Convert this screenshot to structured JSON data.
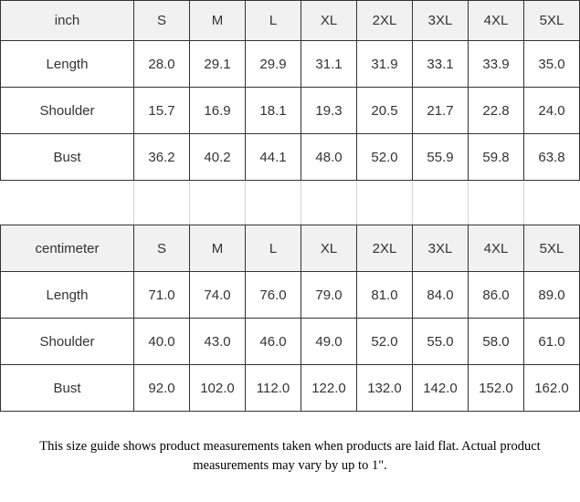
{
  "chart_data": [
    {
      "type": "table",
      "title": "inch",
      "columns": [
        "S",
        "M",
        "L",
        "XL",
        "2XL",
        "3XL",
        "4XL",
        "5XL"
      ],
      "rows": [
        {
          "label": "Length",
          "values": [
            "28.0",
            "29.1",
            "29.9",
            "31.1",
            "31.9",
            "33.1",
            "33.9",
            "35.0"
          ]
        },
        {
          "label": "Shoulder",
          "values": [
            "15.7",
            "16.9",
            "18.1",
            "19.3",
            "20.5",
            "21.7",
            "22.8",
            "24.0"
          ]
        },
        {
          "label": "Bust",
          "values": [
            "36.2",
            "40.2",
            "44.1",
            "48.0",
            "52.0",
            "55.9",
            "59.8",
            "63.8"
          ]
        }
      ]
    },
    {
      "type": "table",
      "title": "centimeter",
      "columns": [
        "S",
        "M",
        "L",
        "XL",
        "2XL",
        "3XL",
        "4XL",
        "5XL"
      ],
      "rows": [
        {
          "label": "Length",
          "values": [
            "71.0",
            "74.0",
            "76.0",
            "79.0",
            "81.0",
            "84.0",
            "86.0",
            "89.0"
          ]
        },
        {
          "label": "Shoulder",
          "values": [
            "40.0",
            "43.0",
            "46.0",
            "49.0",
            "52.0",
            "55.0",
            "58.0",
            "61.0"
          ]
        },
        {
          "label": "Bust",
          "values": [
            "92.0",
            "102.0",
            "112.0",
            "122.0",
            "132.0",
            "142.0",
            "152.0",
            "162.0"
          ]
        }
      ]
    }
  ],
  "footer": {
    "note": "This size guide shows product measurements taken when products are laid flat. Actual product measurements may vary by up to 1\"."
  },
  "colors": {
    "header_bg": "#f1f1f1",
    "border_dark": "#333333",
    "border_light": "#d4d4d4",
    "text": "#333333"
  }
}
